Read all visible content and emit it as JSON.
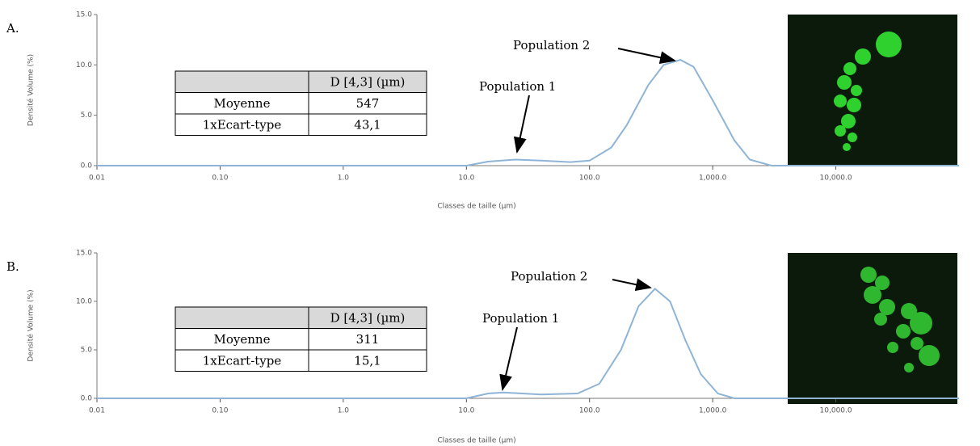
{
  "chart_data": [
    {
      "type": "line",
      "panel_label": "A.",
      "xlabel": "Classes de taille (µm)",
      "ylabel": "Densité Volume (%)",
      "xlog": true,
      "grid": false,
      "color": "#8fb4d6",
      "xlim": [
        0.01,
        100000
      ],
      "ylim": [
        0,
        15
      ],
      "xticks": [
        0.01,
        {
          "value": 0.1,
          "label": "0.10"
        },
        {
          "value": 1,
          "label": "1.0"
        },
        {
          "value": 10,
          "label": "10.0"
        },
        {
          "value": 100,
          "label": "100.0"
        },
        {
          "value": 1000,
          "label": "1,000.0"
        },
        {
          "value": 10000,
          "label": "10,000.0"
        }
      ],
      "yticks": [
        {
          "value": 0,
          "label": "0.0"
        },
        {
          "value": 5,
          "label": "5.0"
        },
        {
          "value": 10,
          "label": "10.0"
        },
        {
          "value": 15,
          "label": "15.0"
        }
      ],
      "x": [
        0.01,
        10,
        15,
        25,
        40,
        70,
        100,
        150,
        200,
        300,
        400,
        547,
        700,
        1000,
        1500,
        2000,
        3000,
        100000
      ],
      "values": [
        0,
        0,
        0.4,
        0.6,
        0.5,
        0.35,
        0.5,
        1.8,
        4,
        8,
        10,
        10.5,
        9.8,
        6.5,
        2.5,
        0.6,
        0,
        0
      ],
      "annotations": [
        "Population 1",
        "Population 2"
      ],
      "table": {
        "header": "D [4,3] (µm)",
        "rows": [
          [
            "Moyenne",
            "547"
          ],
          [
            "1xEcart-type",
            "43,1"
          ]
        ]
      }
    },
    {
      "type": "line",
      "panel_label": "B.",
      "xlabel": "Classes de taille (µm)",
      "ylabel": "Densité Volume (%)",
      "xlog": true,
      "grid": false,
      "color": "#8fb4d6",
      "xlim": [
        0.01,
        100000
      ],
      "ylim": [
        0,
        15
      ],
      "xticks": [
        0.01,
        {
          "value": 0.1,
          "label": "0.10"
        },
        {
          "value": 1,
          "label": "1.0"
        },
        {
          "value": 10,
          "label": "10.0"
        },
        {
          "value": 100,
          "label": "100.0"
        },
        {
          "value": 1000,
          "label": "1,000.0"
        },
        {
          "value": 10000,
          "label": "10,000.0"
        }
      ],
      "yticks": [
        {
          "value": 0,
          "label": "0.0"
        },
        {
          "value": 5,
          "label": "5.0"
        },
        {
          "value": 10,
          "label": "10.0"
        },
        {
          "value": 15,
          "label": "15.0"
        }
      ],
      "x": [
        0.01,
        10,
        15,
        20,
        40,
        80,
        120,
        180,
        250,
        340,
        450,
        600,
        800,
        1100,
        1500,
        100000
      ],
      "values": [
        0,
        0,
        0.5,
        0.6,
        0.4,
        0.5,
        1.5,
        5,
        9.5,
        11.3,
        10,
        6,
        2.5,
        0.5,
        0,
        0
      ],
      "annotations": [
        "Population 1",
        "Population 2"
      ],
      "table": {
        "header": "D [4,3] (µm)",
        "rows": [
          [
            "Moyenne",
            "311"
          ],
          [
            "1xEcart-type",
            "15,1"
          ]
        ]
      }
    }
  ]
}
